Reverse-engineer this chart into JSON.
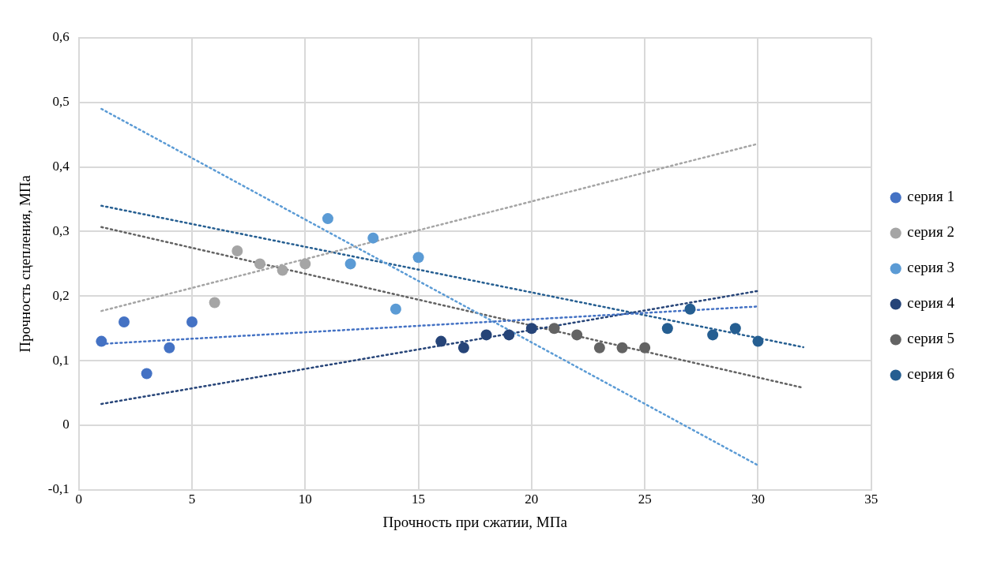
{
  "chart_data": {
    "type": "scatter",
    "xlabel": "Прочность при сжатии, МПа",
    "ylabel": "Прочность сцепления, МПа",
    "xlim": [
      0,
      35
    ],
    "xticks": [
      0,
      5,
      10,
      15,
      20,
      25,
      30,
      35
    ],
    "ylim": [
      -0.1,
      0.6
    ],
    "yticks": [
      {
        "value": -0.1,
        "label": "-0,1"
      },
      0,
      {
        "value": 0.1,
        "label": "0,1"
      },
      {
        "value": 0.2,
        "label": "0,2"
      },
      {
        "value": 0.3,
        "label": "0,3"
      },
      {
        "value": 0.4,
        "label": "0,4"
      },
      {
        "value": 0.5,
        "label": "0,5"
      },
      {
        "value": 0.6,
        "label": "0,6"
      }
    ],
    "grid": true,
    "legend": "right",
    "marker": "circle",
    "series": [
      {
        "name": "серия 1",
        "color": "#4472c4",
        "x": [
          1,
          2,
          3,
          4,
          5
        ],
        "values": [
          0.13,
          0.16,
          0.08,
          0.12,
          0.16
        ]
      },
      {
        "name": "серия 2",
        "color": "#a5a5a5",
        "x": [
          6,
          7,
          8,
          9,
          10
        ],
        "values": [
          0.19,
          0.27,
          0.25,
          0.24,
          0.25
        ]
      },
      {
        "name": "серия 3",
        "color": "#5b9bd5",
        "x": [
          11,
          12,
          13,
          14,
          15
        ],
        "values": [
          0.32,
          0.25,
          0.29,
          0.18,
          0.26
        ]
      },
      {
        "name": "серия 4",
        "color": "#264478",
        "x": [
          16,
          17,
          18,
          19,
          20
        ],
        "values": [
          0.13,
          0.12,
          0.14,
          0.14,
          0.15
        ]
      },
      {
        "name": "серия 5",
        "color": "#636363",
        "x": [
          21,
          22,
          23,
          24,
          25
        ],
        "values": [
          0.15,
          0.14,
          0.12,
          0.12,
          0.12
        ]
      },
      {
        "name": "серия 6",
        "color": "#255e91",
        "x": [
          26,
          27,
          28,
          29,
          30
        ],
        "values": [
          0.15,
          0.18,
          0.14,
          0.15,
          0.13
        ]
      },
      {
        "type": "line",
        "color": "#4472c4",
        "x": [
          1,
          30
        ],
        "values": [
          0.126,
          0.184
        ],
        "marker": "none",
        "line_style": "dotted"
      },
      {
        "type": "line",
        "color": "#a5a5a5",
        "x": [
          1,
          30
        ],
        "values": [
          0.177,
          0.436
        ],
        "marker": "none",
        "line_style": "dotted"
      },
      {
        "type": "line",
        "color": "#5b9bd5",
        "x": [
          1,
          30
        ],
        "values": [
          0.49,
          -0.062
        ],
        "marker": "none",
        "line_style": "dotted"
      },
      {
        "type": "line",
        "color": "#264478",
        "x": [
          1,
          30
        ],
        "values": [
          0.033,
          0.208
        ],
        "marker": "none",
        "line_style": "dotted"
      },
      {
        "type": "line",
        "color": "#636363",
        "x": [
          1,
          32
        ],
        "values": [
          0.307,
          0.058
        ],
        "marker": "none",
        "line_style": "dotted"
      },
      {
        "type": "line",
        "color": "#255e91",
        "x": [
          1,
          32
        ],
        "values": [
          0.34,
          0.121
        ],
        "marker": "none",
        "line_style": "dotted"
      }
    ]
  }
}
